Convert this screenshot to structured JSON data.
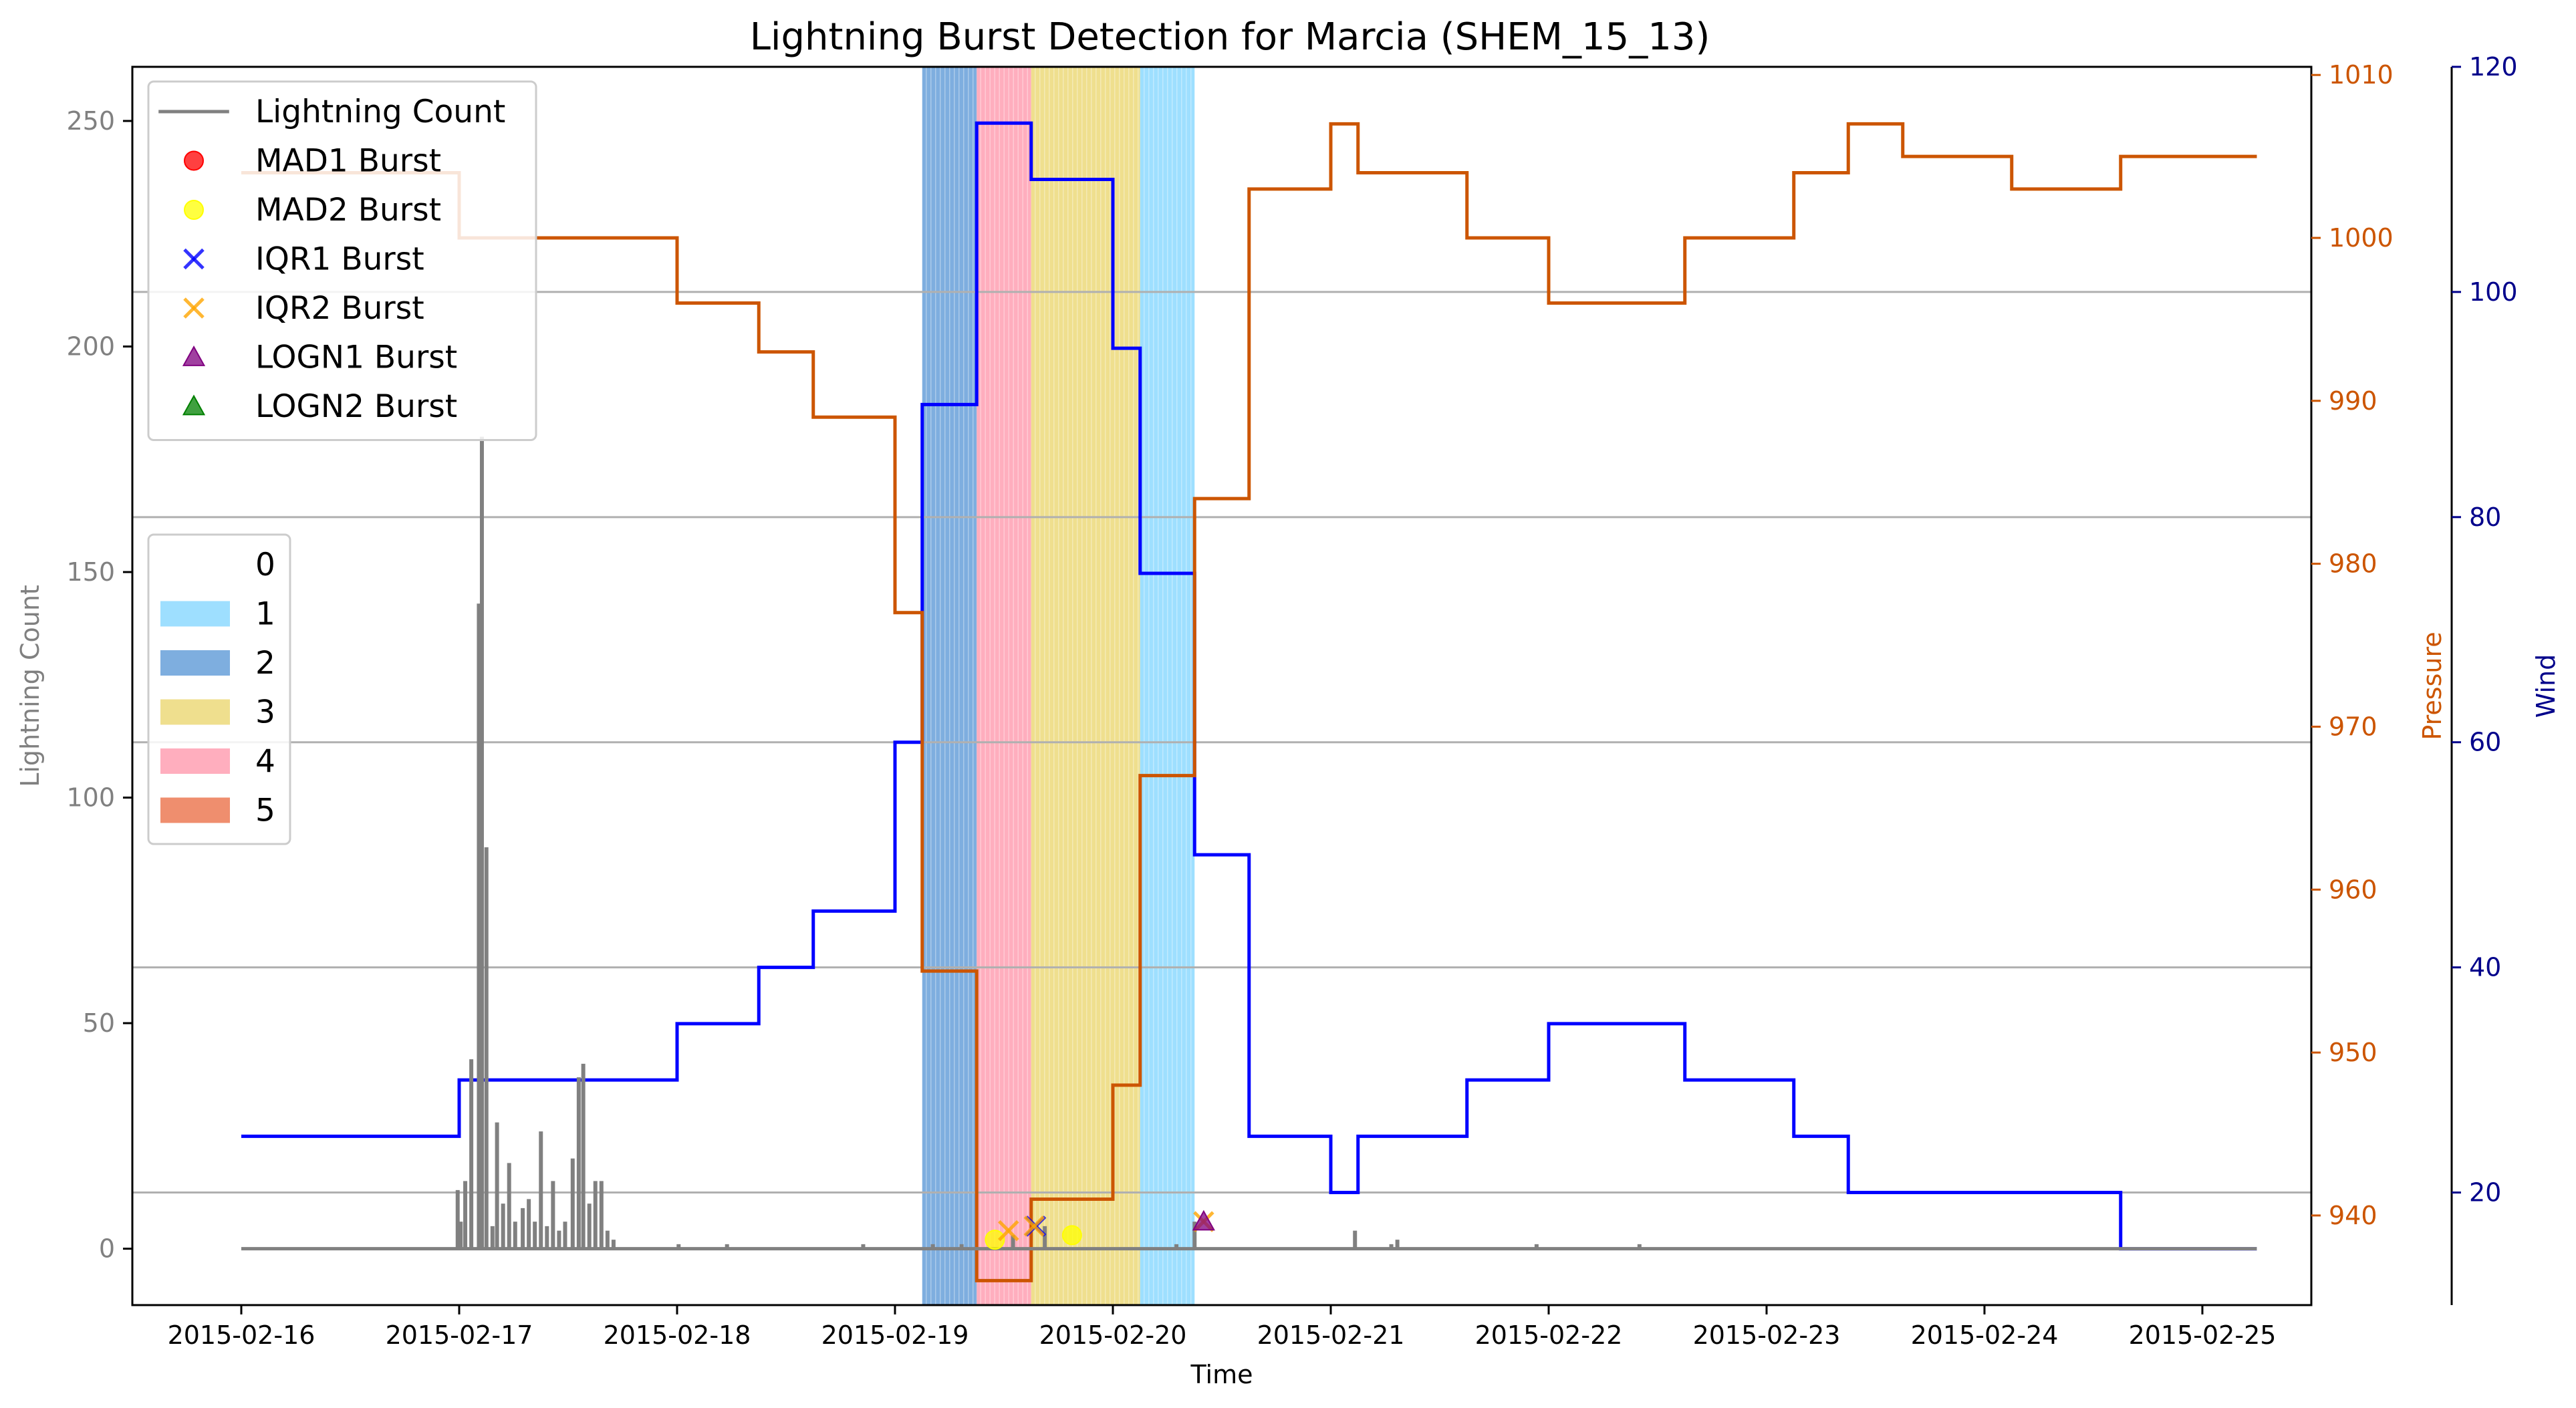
{
  "chart_data": {
    "type": "line",
    "title": "Lightning Burst Detection for Marcia (SHEM_15_13)",
    "xlabel": "Time",
    "x_ticks": [
      "2015-02-16",
      "2015-02-17",
      "2015-02-18",
      "2015-02-19",
      "2015-02-20",
      "2015-02-21",
      "2015-02-22",
      "2015-02-23",
      "2015-02-24",
      "2015-02-25"
    ],
    "xlim": [
      "2015-02-15T12:00",
      "2015-02-25T12:00"
    ],
    "axes": {
      "left": {
        "label": "Lightning Count",
        "ylim": [
          -12.5,
          262
        ],
        "ticks": [
          0,
          50,
          100,
          150,
          200,
          250
        ],
        "color": "#808080"
      },
      "right1": {
        "label": "Pressure",
        "ylim": [
          934.5,
          1010.5
        ],
        "ticks": [
          940,
          950,
          960,
          970,
          980,
          990,
          1000,
          1010
        ],
        "color": "#cc5500"
      },
      "right2": {
        "label": "Wind",
        "ylim": [
          10,
          120
        ],
        "ticks": [
          20,
          40,
          60,
          80,
          100,
          120
        ],
        "color": "#00008b"
      }
    },
    "grid": "horizontal lines at wind ticks",
    "category_spans": [
      {
        "category": "2",
        "start": "2015-02-19T03:00",
        "end": "2015-02-19T09:00",
        "color": "#77aadd"
      },
      {
        "category": "4",
        "start": "2015-02-19T09:00",
        "end": "2015-02-19T15:00",
        "color": "#ffaabb"
      },
      {
        "category": "3",
        "start": "2015-02-19T15:00",
        "end": "2015-02-20T03:00",
        "color": "#eedd88"
      },
      {
        "category": "1",
        "start": "2015-02-20T03:00",
        "end": "2015-02-20T09:00",
        "color": "#99ddff"
      }
    ],
    "series": [
      {
        "name": "Wind",
        "axis": "right2",
        "color": "#0000ff",
        "step": true,
        "points": [
          [
            "2015-02-16T00:00",
            25
          ],
          [
            "2015-02-17T00:00",
            30
          ],
          [
            "2015-02-18T00:00",
            35
          ],
          [
            "2015-02-18T09:00",
            40
          ],
          [
            "2015-02-18T15:00",
            45
          ],
          [
            "2015-02-19T00:00",
            60
          ],
          [
            "2015-02-19T03:00",
            90
          ],
          [
            "2015-02-19T09:00",
            115
          ],
          [
            "2015-02-19T15:00",
            110
          ],
          [
            "2015-02-20T00:00",
            95
          ],
          [
            "2015-02-20T03:00",
            75
          ],
          [
            "2015-02-20T09:00",
            50
          ],
          [
            "2015-02-20T15:00",
            25
          ],
          [
            "2015-02-21T00:00",
            20
          ],
          [
            "2015-02-21T03:00",
            25
          ],
          [
            "2015-02-21T15:00",
            30
          ],
          [
            "2015-02-22T00:00",
            35
          ],
          [
            "2015-02-22T15:00",
            30
          ],
          [
            "2015-02-23T03:00",
            25
          ],
          [
            "2015-02-23T09:00",
            20
          ],
          [
            "2015-02-24T15:00",
            15
          ],
          [
            "2015-02-25T06:00",
            15
          ]
        ]
      },
      {
        "name": "Pressure",
        "axis": "right1",
        "color": "#cc5500",
        "step": true,
        "points": [
          [
            "2015-02-16T00:00",
            1004
          ],
          [
            "2015-02-17T00:00",
            1000
          ],
          [
            "2015-02-18T00:00",
            996
          ],
          [
            "2015-02-18T09:00",
            993
          ],
          [
            "2015-02-18T15:00",
            989
          ],
          [
            "2015-02-19T00:00",
            977
          ],
          [
            "2015-02-19T03:00",
            955
          ],
          [
            "2015-02-19T09:00",
            936
          ],
          [
            "2015-02-19T15:00",
            941
          ],
          [
            "2015-02-20T00:00",
            948
          ],
          [
            "2015-02-20T03:00",
            967
          ],
          [
            "2015-02-20T09:00",
            984
          ],
          [
            "2015-02-20T15:00",
            1003
          ],
          [
            "2015-02-21T00:00",
            1007
          ],
          [
            "2015-02-21T03:00",
            1004
          ],
          [
            "2015-02-21T15:00",
            1000
          ],
          [
            "2015-02-22T00:00",
            996
          ],
          [
            "2015-02-22T15:00",
            1000
          ],
          [
            "2015-02-23T03:00",
            1004
          ],
          [
            "2015-02-23T09:00",
            1007
          ],
          [
            "2015-02-23T15:00",
            1005
          ],
          [
            "2015-02-24T03:00",
            1003
          ],
          [
            "2015-02-24T15:00",
            1005
          ],
          [
            "2015-02-25T06:00",
            1005
          ]
        ]
      },
      {
        "name": "Lightning Count",
        "axis": "left",
        "color": "#808080",
        "baseline_range": [
          "2015-02-16T00:00",
          "2015-02-25T06:00"
        ],
        "spikes": [
          [
            "2015-02-16T23:50",
            13
          ],
          [
            "2015-02-17T00:10",
            6
          ],
          [
            "2015-02-17T00:40",
            15
          ],
          [
            "2015-02-17T01:20",
            42
          ],
          [
            "2015-02-17T02:10",
            143
          ],
          [
            "2015-02-17T02:30",
            180
          ],
          [
            "2015-02-17T03:00",
            89
          ],
          [
            "2015-02-17T03:40",
            5
          ],
          [
            "2015-02-17T04:10",
            28
          ],
          [
            "2015-02-17T04:50",
            10
          ],
          [
            "2015-02-17T05:30",
            19
          ],
          [
            "2015-02-17T06:10",
            6
          ],
          [
            "2015-02-17T07:00",
            9
          ],
          [
            "2015-02-17T07:40",
            11
          ],
          [
            "2015-02-17T08:20",
            6
          ],
          [
            "2015-02-17T09:00",
            26
          ],
          [
            "2015-02-17T09:40",
            5
          ],
          [
            "2015-02-17T10:20",
            15
          ],
          [
            "2015-02-17T11:00",
            4
          ],
          [
            "2015-02-17T11:40",
            6
          ],
          [
            "2015-02-17T12:30",
            20
          ],
          [
            "2015-02-17T13:10",
            38
          ],
          [
            "2015-02-17T13:40",
            41
          ],
          [
            "2015-02-17T14:20",
            10
          ],
          [
            "2015-02-17T15:00",
            15
          ],
          [
            "2015-02-17T15:40",
            15
          ],
          [
            "2015-02-17T16:20",
            4
          ],
          [
            "2015-02-17T17:00",
            2
          ],
          [
            "2015-02-18T00:10",
            1
          ],
          [
            "2015-02-18T05:30",
            1
          ],
          [
            "2015-02-18T20:30",
            1
          ],
          [
            "2015-02-19T04:10",
            1
          ],
          [
            "2015-02-19T07:20",
            1
          ],
          [
            "2015-02-19T13:00",
            3
          ],
          [
            "2015-02-19T16:30",
            5
          ],
          [
            "2015-02-20T07:00",
            1
          ],
          [
            "2015-02-20T09:00",
            6
          ],
          [
            "2015-02-21T02:40",
            4
          ],
          [
            "2015-02-21T06:40",
            1
          ],
          [
            "2015-02-21T07:20",
            2
          ],
          [
            "2015-02-21T22:40",
            1
          ],
          [
            "2015-02-22T10:00",
            1
          ]
        ]
      }
    ],
    "burst_markers": [
      {
        "series": "MAD2 Burst",
        "x": "2015-02-19T11:00",
        "y": 2
      },
      {
        "series": "MAD2 Burst",
        "x": "2015-02-19T19:30",
        "y": 3
      },
      {
        "series": "IQR2 Burst",
        "x": "2015-02-19T12:30",
        "y": 4
      },
      {
        "series": "IQR1 Burst",
        "x": "2015-02-19T15:30",
        "y": 5
      },
      {
        "series": "IQR2 Burst",
        "x": "2015-02-19T15:20",
        "y": 5
      },
      {
        "series": "IQR2 Burst",
        "x": "2015-02-20T10:00",
        "y": 6
      },
      {
        "series": "LOGN1 Burst",
        "x": "2015-02-20T10:00",
        "y": 6
      }
    ],
    "legend1": {
      "placement": "upper left",
      "entries": [
        {
          "label": "Lightning Count",
          "marker": "line",
          "color": "#808080"
        },
        {
          "label": "MAD1 Burst",
          "marker": "circle",
          "color": "#ff0000"
        },
        {
          "label": "MAD2 Burst",
          "marker": "circle",
          "color": "#ffff00"
        },
        {
          "label": "IQR1 Burst",
          "marker": "x",
          "color": "#0000ff"
        },
        {
          "label": "IQR2 Burst",
          "marker": "x",
          "color": "#ffa500"
        },
        {
          "label": "LOGN1 Burst",
          "marker": "triangle",
          "color": "#800080"
        },
        {
          "label": "LOGN2 Burst",
          "marker": "triangle",
          "color": "#008000"
        }
      ]
    },
    "legend2": {
      "placement": "center left",
      "entries": [
        {
          "label": "0",
          "color": "#ffffff"
        },
        {
          "label": "1",
          "color": "#99ddff"
        },
        {
          "label": "2",
          "color": "#77aadd"
        },
        {
          "label": "3",
          "color": "#eedd88"
        },
        {
          "label": "4",
          "color": "#ffaabb"
        },
        {
          "label": "5",
          "color": "#ee8866"
        }
      ]
    }
  }
}
